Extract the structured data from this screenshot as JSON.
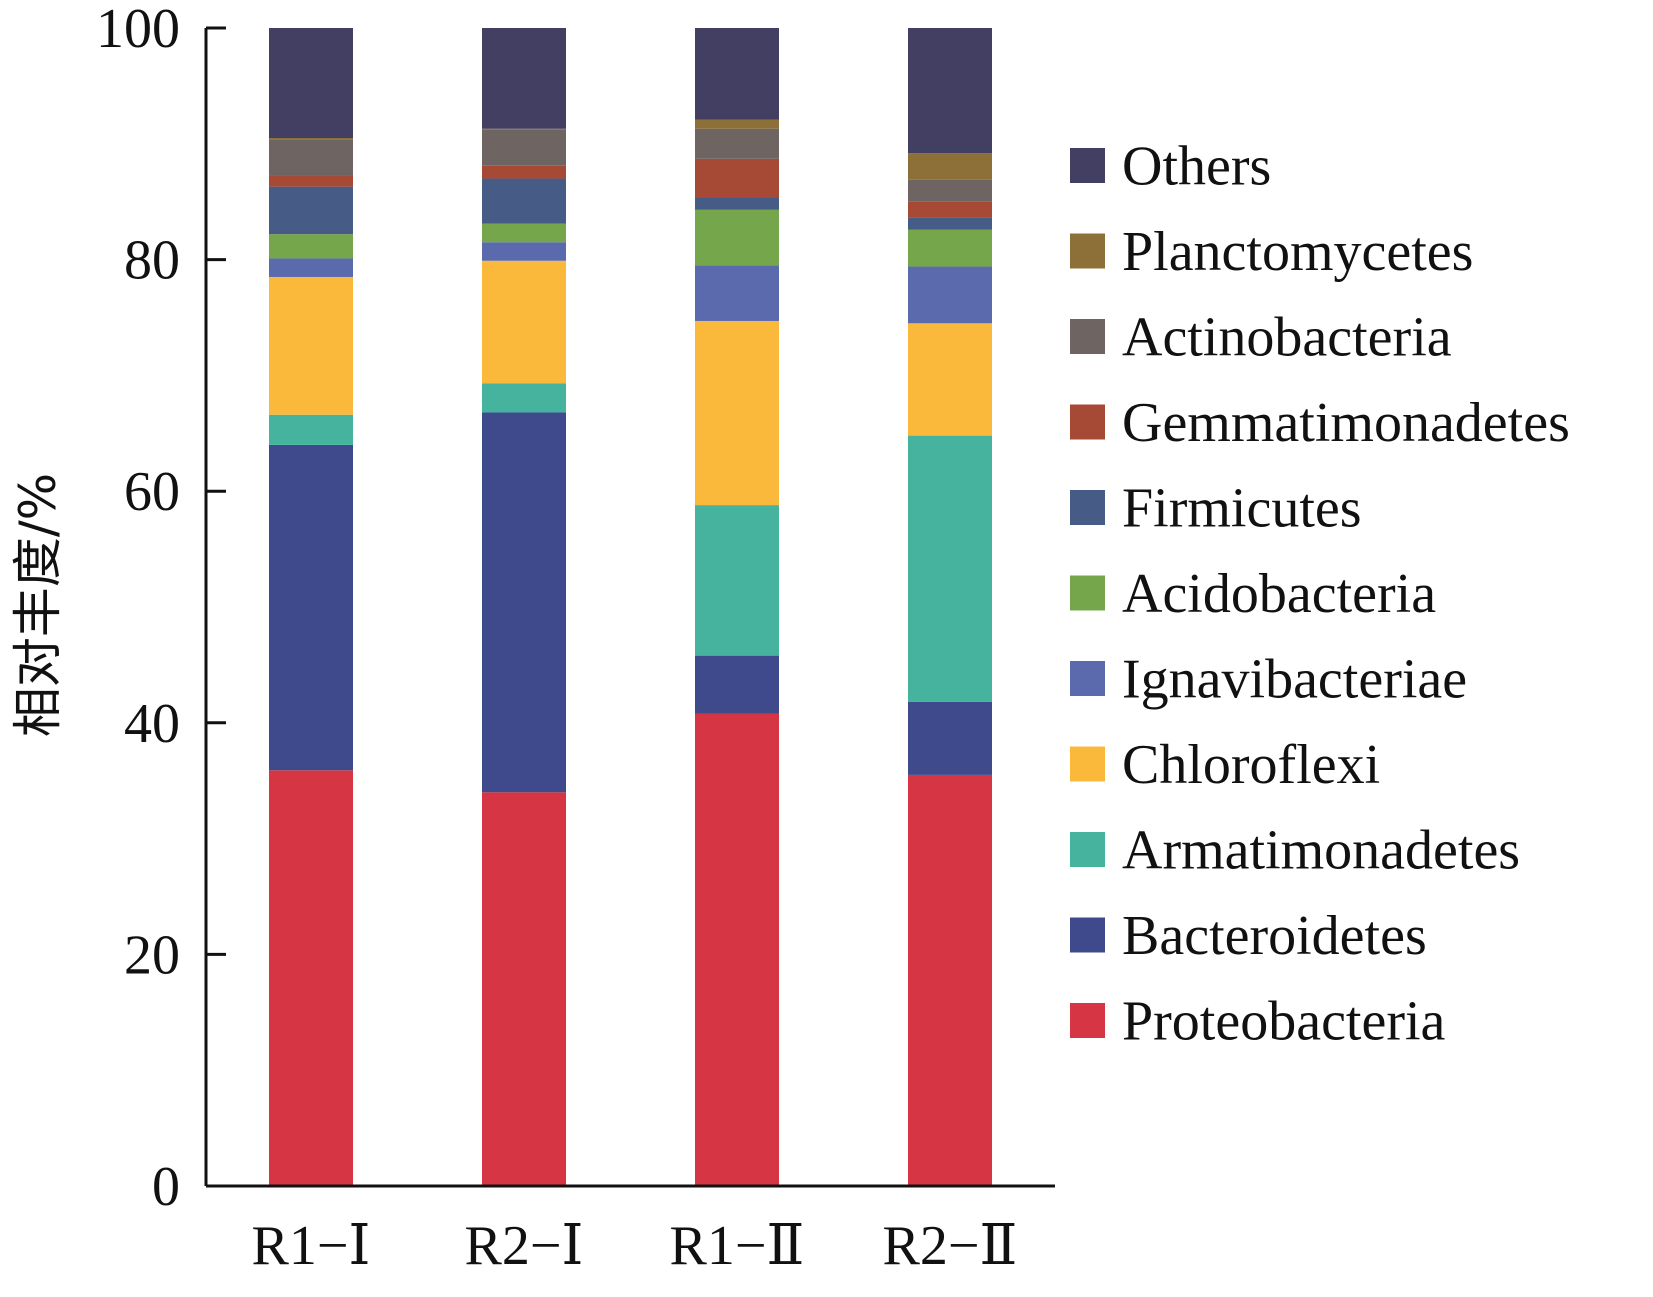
{
  "chart_data": {
    "type": "bar",
    "stacked": true,
    "title": "",
    "xlabel": "",
    "ylabel": "相对丰度/%",
    "ylim": [
      0,
      100
    ],
    "yticks": [
      0,
      20,
      40,
      60,
      80,
      100
    ],
    "categories": [
      "R1−Ⅰ",
      "R2−Ⅰ",
      "R1−Ⅱ",
      "R2−Ⅱ"
    ],
    "legend_position": "right",
    "grid": false,
    "series": [
      {
        "name": "Proteobacteria",
        "color": "#d63543",
        "values": [
          35.9,
          34.0,
          40.8,
          35.5
        ]
      },
      {
        "name": "Bacteroidetes",
        "color": "#3f4a8c",
        "values": [
          28.1,
          32.8,
          5.0,
          6.3
        ]
      },
      {
        "name": "Armatimonadetes",
        "color": "#45b39d",
        "values": [
          2.6,
          2.5,
          13.0,
          23.0
        ]
      },
      {
        "name": "Chloroflexi",
        "color": "#fbb93c",
        "values": [
          11.9,
          10.6,
          15.9,
          9.7
        ]
      },
      {
        "name": "Ignavibacteriae",
        "color": "#5a6aac",
        "values": [
          1.6,
          1.6,
          4.8,
          4.9
        ]
      },
      {
        "name": "Acidobacteria",
        "color": "#76a64c",
        "values": [
          2.1,
          1.6,
          4.8,
          3.2
        ]
      },
      {
        "name": "Firmicutes",
        "color": "#465b86",
        "values": [
          4.1,
          3.9,
          1.1,
          1.0
        ]
      },
      {
        "name": "Gemmatimonadetes",
        "color": "#a74a35",
        "values": [
          1.0,
          1.1,
          3.3,
          1.4
        ]
      },
      {
        "name": "Actinobacteria",
        "color": "#6e6562",
        "values": [
          3.1,
          3.1,
          2.6,
          1.9
        ]
      },
      {
        "name": "Planctomycetes",
        "color": "#8d6f38",
        "values": [
          0.1,
          0.1,
          0.8,
          2.3
        ]
      },
      {
        "name": "Others",
        "color": "#433f63",
        "values": [
          9.5,
          8.7,
          7.9,
          10.8
        ]
      }
    ]
  }
}
